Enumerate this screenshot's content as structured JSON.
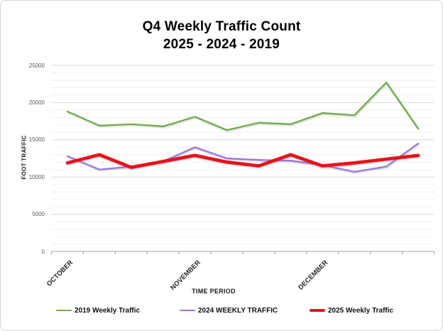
{
  "chart_data": {
    "type": "line",
    "title_line1": "Q4 Weekly Traffic Count",
    "title_line2": "2025 - 2024 - 2019",
    "xlabel": "TIME PERIOD",
    "ylabel": "FOOT TRAFFIC",
    "ylim": [
      0,
      25000
    ],
    "y_major_ticks": [
      0,
      5000,
      10000,
      15000,
      20000,
      25000
    ],
    "y_minor_step": 1000,
    "grid": "horizontal major and minor gridlines",
    "legend_position": "bottom",
    "x_unit": "week of quarter",
    "week_index": [
      1,
      2,
      3,
      4,
      5,
      6,
      7,
      8,
      9,
      10,
      11,
      12
    ],
    "month_labels": [
      {
        "label": "OCTOBER",
        "at_week": 1
      },
      {
        "label": "NOVEMBER",
        "at_week": 5
      },
      {
        "label": "DECEMBER",
        "at_week": 9
      }
    ],
    "series": [
      {
        "name": "2019 Weekly Traffic",
        "color": "#70AD47",
        "stroke_width": 2.2,
        "values": [
          18800,
          16900,
          17100,
          16800,
          18100,
          16300,
          17300,
          17100,
          18600,
          18300,
          22700,
          16500
        ]
      },
      {
        "name": "2024 WEEKLY TRAFFIC",
        "color": "#9776E1",
        "stroke_width": 2.2,
        "values": [
          12800,
          11000,
          11400,
          12100,
          14000,
          12500,
          12300,
          12200,
          11600,
          10700,
          11400,
          14500
        ]
      },
      {
        "name": "2025 Weekly Traffic",
        "color": "#E8111C",
        "stroke_width": 4.6,
        "values": [
          11900,
          13000,
          11300,
          12100,
          12900,
          12000,
          11500,
          13000,
          11500,
          11900,
          12400,
          12900
        ]
      }
    ]
  }
}
